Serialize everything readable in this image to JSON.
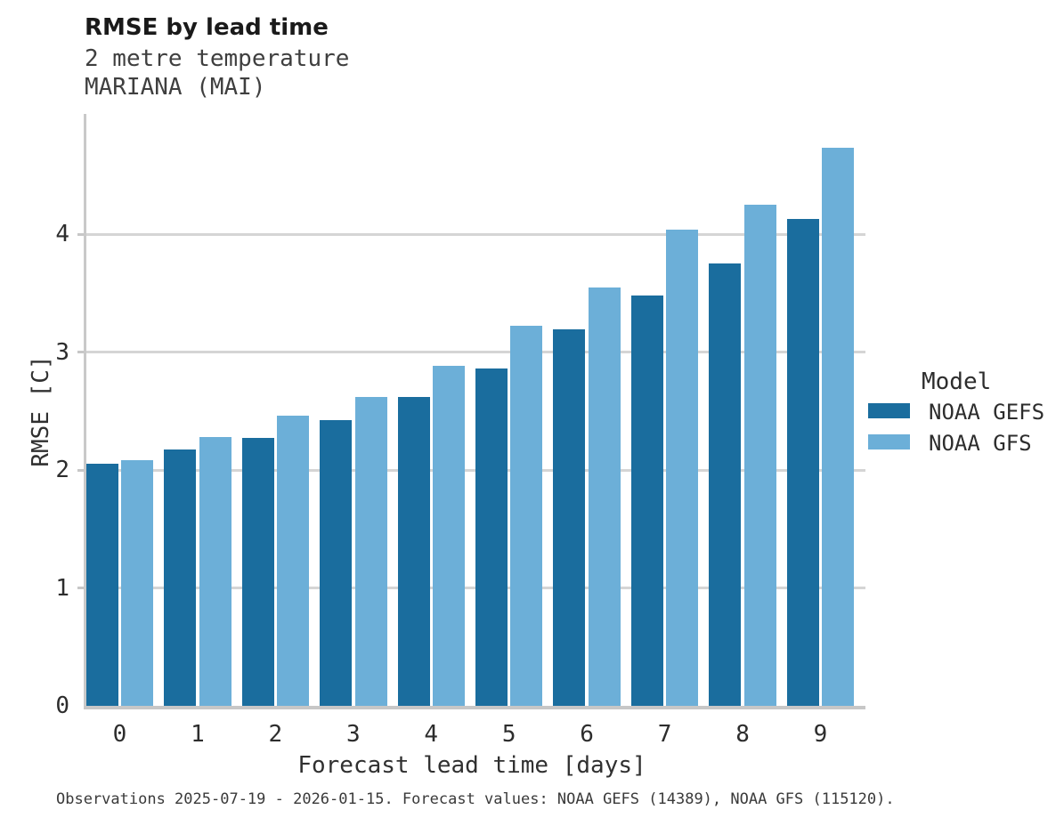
{
  "header": {
    "title": "RMSE by lead time",
    "subtitle1": "2 metre temperature",
    "subtitle2": "MARIANA (MAI)"
  },
  "chart_data": {
    "type": "bar",
    "title": "RMSE by lead time",
    "subtitle": [
      "2 metre temperature",
      "MARIANA (MAI)"
    ],
    "categories": [
      "0",
      "1",
      "2",
      "3",
      "4",
      "5",
      "6",
      "7",
      "8",
      "9"
    ],
    "series": [
      {
        "name": "NOAA GEFS",
        "color": "#1A6D9E",
        "values": [
          2.05,
          2.17,
          2.27,
          2.42,
          2.62,
          2.86,
          3.19,
          3.48,
          3.75,
          4.13
        ]
      },
      {
        "name": "NOAA GFS",
        "color": "#6CAFD8",
        "values": [
          2.08,
          2.28,
          2.46,
          2.62,
          2.88,
          3.22,
          3.55,
          4.04,
          4.25,
          4.73
        ]
      }
    ],
    "xlabel": "Forecast lead time [days]",
    "ylabel": "RMSE [C]",
    "ylim": [
      0,
      5
    ],
    "yticks": [
      0,
      1,
      2,
      3,
      4
    ],
    "grid": "horizontal-only",
    "legend_title": "Model",
    "legend_position": "right"
  },
  "legend": {
    "title": "Model"
  },
  "caption": {
    "text": "Observations 2025-07-19 - 2026-01-15. Forecast values: NOAA GEFS (14389), NOAA GFS (115120)."
  },
  "colors": {
    "series_dark": "#1A6D9E",
    "series_light": "#6CAFD8",
    "gridline": "#d5d5d5",
    "axis_line": "#c7c7c7",
    "title_text": "#1a1a1a",
    "subtitle_text": "#3f3f3f",
    "tick_text": "#2d2d2d",
    "caption_text": "#3a3a3a",
    "background": "#ffffff"
  }
}
